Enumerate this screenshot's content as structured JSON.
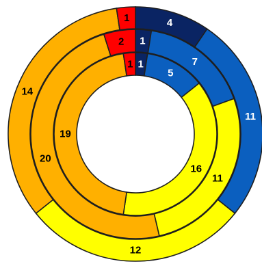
{
  "chart_data": {
    "type": "doughnut",
    "title": "",
    "start_angle_deg": 0,
    "direction": "clockwise",
    "categories": [
      "Dark blue",
      "Blue",
      "Yellow",
      "Orange",
      "Red"
    ],
    "colors": [
      "#0a2463",
      "#0b5fbf",
      "#ffff00",
      "#ffb000",
      "#ff0000"
    ],
    "label_colors": [
      "#ffffff",
      "#ffffff",
      "#000000",
      "#000000",
      "#000000"
    ],
    "rings": [
      {
        "position": "outer",
        "values": [
          4,
          11,
          12,
          14,
          1
        ]
      },
      {
        "position": "middle",
        "values": [
          1,
          7,
          11,
          20,
          2
        ]
      },
      {
        "position": "inner",
        "values": [
          1,
          5,
          16,
          19,
          1
        ]
      }
    ]
  }
}
